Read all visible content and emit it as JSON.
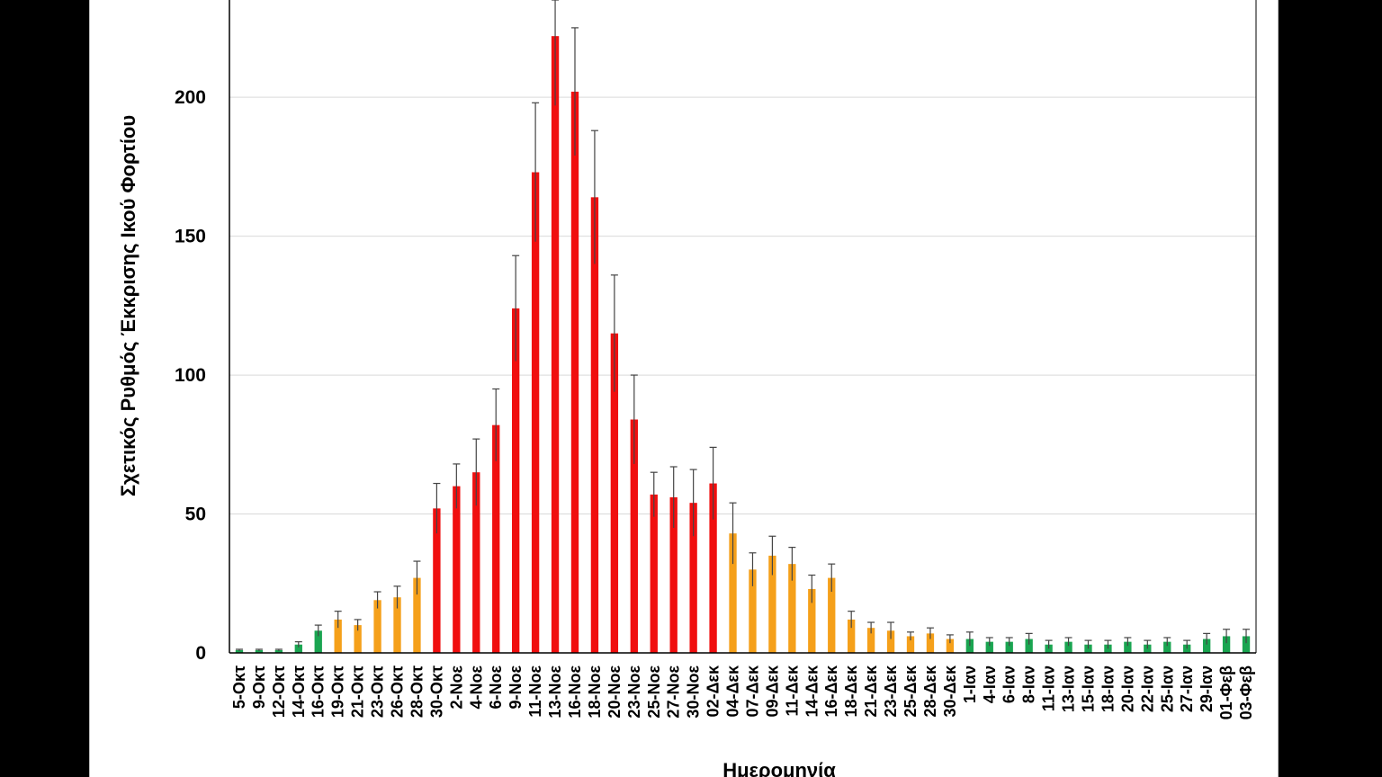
{
  "chart_data": {
    "type": "bar",
    "title": "",
    "xlabel": "Ημερομηνία",
    "ylabel": "Σχετικός Ρυθμός Έκκρισης Ικού Φορτίου",
    "ylim": [
      0,
      235
    ],
    "yticks": [
      0,
      50,
      100,
      150,
      200
    ],
    "grid": true,
    "legend": "none",
    "colors": {
      "green": "#1aa551",
      "orange": "#f5a01a",
      "red": "#f00f0f",
      "errorbar": "#444444",
      "grid": "#d9d9d9"
    },
    "categories": [
      "5-Οκτ",
      "9-Οκτ",
      "12-Οκτ",
      "14-Οκτ",
      "16-Οκτ",
      "19-Οκτ",
      "21-Οκτ",
      "23-Οκτ",
      "26-Οκτ",
      "28-Οκτ",
      "30-Οκτ",
      "2-Νοε",
      "4-Νοε",
      "6-Νοε",
      "9-Νοε",
      "11-Νοε",
      "13-Νοε",
      "16-Νοε",
      "18-Νοε",
      "20-Νοε",
      "23-Νοε",
      "25-Νοε",
      "27-Νοε",
      "30-Νοε",
      "02-Δεκ",
      "04-Δεκ",
      "07-Δεκ",
      "09-Δεκ",
      "11-Δεκ",
      "14-Δεκ",
      "16-Δεκ",
      "18-Δεκ",
      "21-Δεκ",
      "23-Δεκ",
      "25-Δεκ",
      "28-Δεκ",
      "30-Δεκ",
      "1-Ιαν",
      "4-Ιαν",
      "6-Ιαν",
      "8-Ιαν",
      "11-Ιαν",
      "13-Ιαν",
      "15-Ιαν",
      "18-Ιαν",
      "20-Ιαν",
      "22-Ιαν",
      "25-Ιαν",
      "27-Ιαν",
      "29-Ιαν",
      "01-Φεβ",
      "03-Φεβ"
    ],
    "values": [
      1,
      1,
      1,
      3,
      8,
      12,
      10,
      19,
      20,
      27,
      52,
      60,
      65,
      82,
      124,
      173,
      222,
      202,
      164,
      115,
      84,
      57,
      56,
      54,
      61,
      43,
      30,
      35,
      32,
      23,
      27,
      12,
      9,
      8,
      6,
      7,
      5,
      5,
      4,
      4,
      5,
      3,
      4,
      3,
      3,
      4,
      3,
      4,
      3,
      5,
      6,
      6
    ],
    "errors": [
      0.3,
      0.3,
      0.3,
      1,
      2,
      3,
      2,
      3,
      4,
      6,
      9,
      8,
      12,
      13,
      19,
      25,
      25,
      23,
      24,
      21,
      16,
      8,
      11,
      12,
      13,
      11,
      6,
      7,
      6,
      5,
      5,
      3,
      2,
      3,
      1.5,
      2,
      1.5,
      2.5,
      1.5,
      1.5,
      2,
      1.5,
      1.5,
      1.5,
      1.5,
      1.5,
      1.5,
      1.5,
      1.5,
      2,
      2.5,
      2.5
    ],
    "bar_colors": [
      "green",
      "green",
      "green",
      "green",
      "green",
      "orange",
      "orange",
      "orange",
      "orange",
      "orange",
      "red",
      "red",
      "red",
      "red",
      "red",
      "red",
      "red",
      "red",
      "red",
      "red",
      "red",
      "red",
      "red",
      "red",
      "red",
      "orange",
      "orange",
      "orange",
      "orange",
      "orange",
      "orange",
      "orange",
      "orange",
      "orange",
      "orange",
      "orange",
      "orange",
      "green",
      "green",
      "green",
      "green",
      "green",
      "green",
      "green",
      "green",
      "green",
      "green",
      "green",
      "green",
      "green",
      "green",
      "green"
    ]
  }
}
